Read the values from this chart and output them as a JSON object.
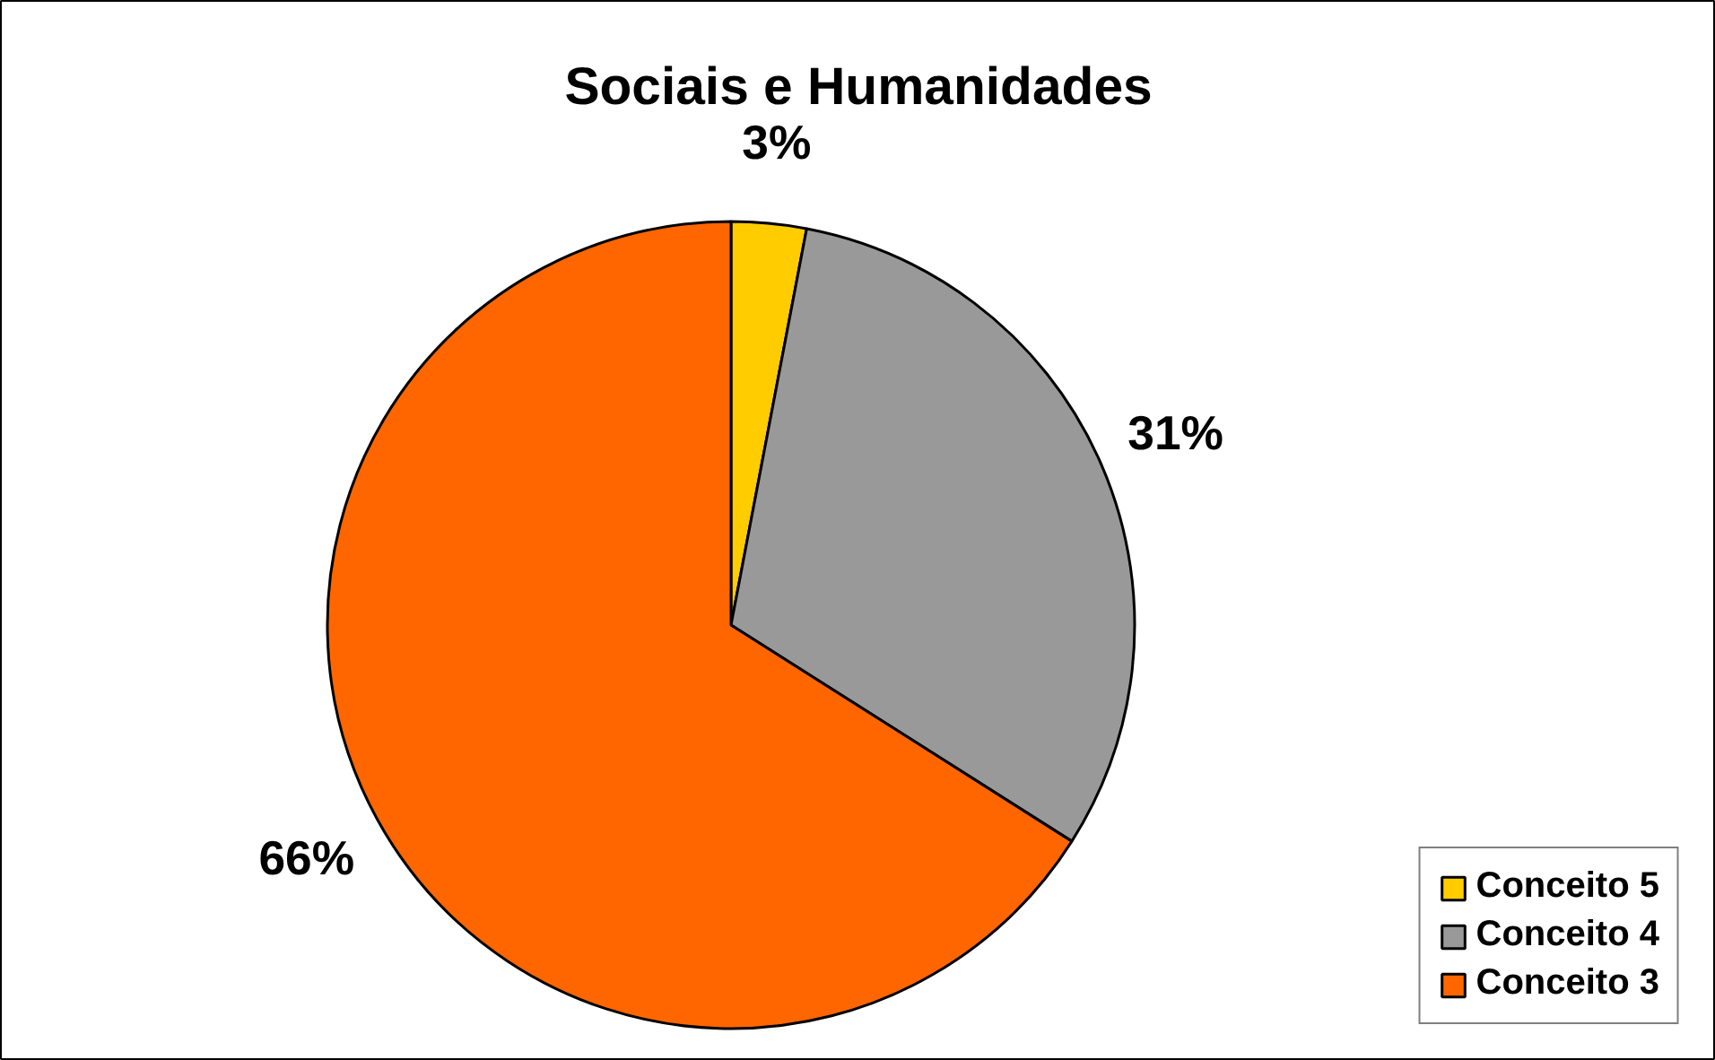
{
  "chart_data": {
    "type": "pie",
    "title": "Sociais e Humanidades",
    "categories": [
      "Conceito 5",
      "Conceito 4",
      "Conceito 3"
    ],
    "values": [
      3,
      31,
      66
    ],
    "colors": [
      "#ffcc00",
      "#999999",
      "#ff6600"
    ],
    "value_labels": [
      "3%",
      "31%",
      "66%"
    ],
    "legend": "bottom right"
  }
}
